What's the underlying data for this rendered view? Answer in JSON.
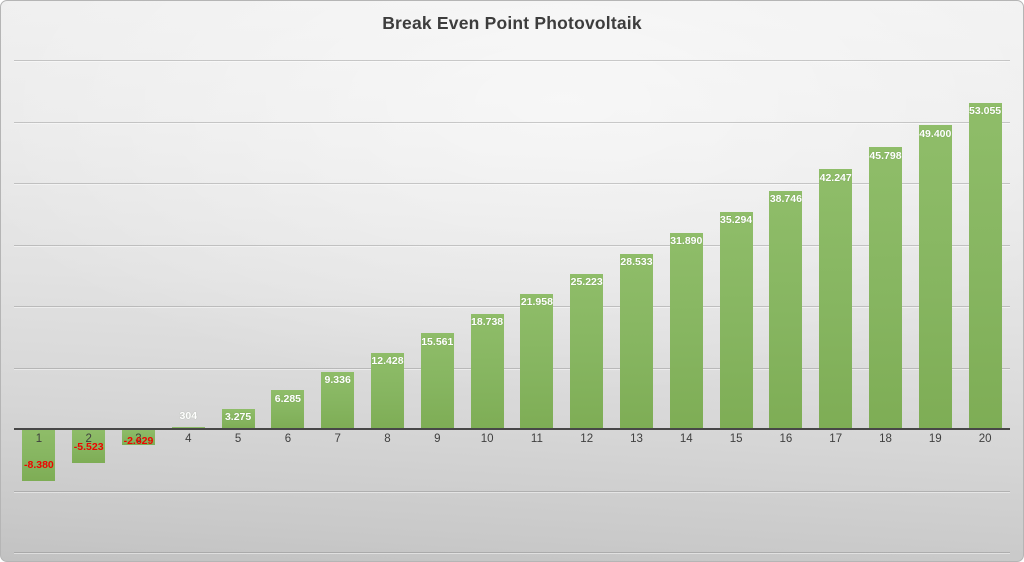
{
  "slide": {
    "title": "Break Even Point Photovoltaik"
  },
  "chart_data": {
    "type": "bar",
    "title": "Break Even Point Photovoltaik",
    "xlabel": "",
    "ylabel": "",
    "categories": [
      "1",
      "2",
      "3",
      "4",
      "5",
      "6",
      "7",
      "8",
      "9",
      "10",
      "11",
      "12",
      "13",
      "14",
      "15",
      "16",
      "17",
      "18",
      "19",
      "20"
    ],
    "values": [
      -8380,
      -5523,
      -2629,
      304,
      3275,
      6285,
      9336,
      12428,
      15561,
      18738,
      21958,
      25223,
      28533,
      31890,
      35294,
      38746,
      42247,
      45798,
      49400,
      53055
    ],
    "labels": [
      "-8.380",
      "-5.523",
      "-2.629",
      "304",
      "3.275",
      "6.285",
      "9.336",
      "12.428",
      "15.561",
      "18.738",
      "21.958",
      "25.223",
      "28.533",
      "31.890",
      "35.294",
      "38.746",
      "42.247",
      "45.798",
      "49.400",
      "53.055"
    ],
    "ylim": [
      -20000,
      60000
    ],
    "gridline_interval": 10000,
    "grid": true,
    "legend_position": "none",
    "colors": {
      "bar_fill": "#86b560",
      "positive_label": "#ffffff",
      "negative_label": "#ee0400",
      "category_label": "#3f3f3f",
      "axis_line": "#474747",
      "gridline": "#7d7d7d",
      "title": "#3d3d3d"
    }
  }
}
